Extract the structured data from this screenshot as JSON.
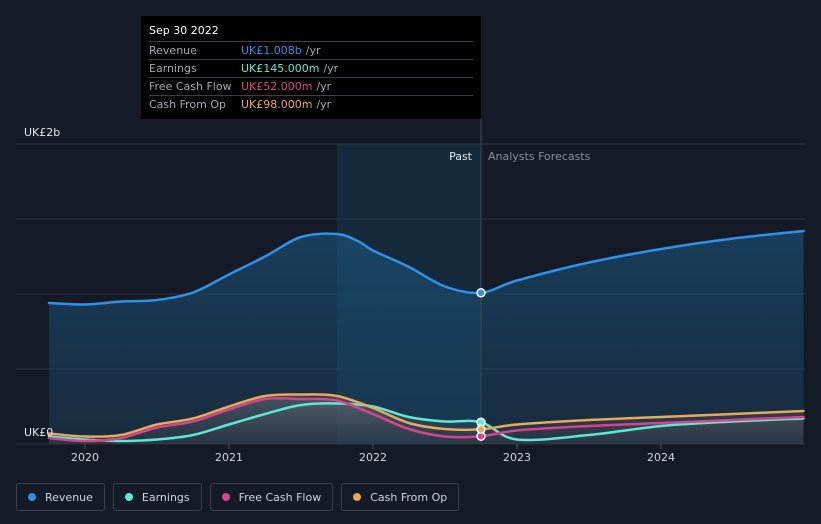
{
  "tooltip": {
    "date": "Sep 30 2022",
    "rows": [
      {
        "label": "Revenue",
        "value": "UK£1.008b",
        "unit": "/yr",
        "color": "#2e93e8"
      },
      {
        "label": "Earnings",
        "value": "UK£145.000m",
        "unit": "/yr",
        "color": "#5ee8d3"
      },
      {
        "label": "Free Cash Flow",
        "value": "UK£52.000m",
        "unit": "/yr",
        "color": "#d6458c"
      },
      {
        "label": "Cash From Op",
        "value": "UK£98.000m",
        "unit": "/yr",
        "color": "#e8a95b"
      }
    ]
  },
  "labels": {
    "past": "Past",
    "forecast": "Analysts Forecasts",
    "y_top": "UK£2b",
    "y_bottom": "UK£0"
  },
  "legend": [
    {
      "label": "Revenue",
      "color": "#2e93e8"
    },
    {
      "label": "Earnings",
      "color": "#5ee8d3"
    },
    {
      "label": "Free Cash Flow",
      "color": "#d6458c"
    },
    {
      "label": "Cash From Op",
      "color": "#e8a95b"
    }
  ],
  "chart_data": {
    "type": "line",
    "x_ticks": [
      "2020",
      "2021",
      "2022",
      "2023",
      "2024"
    ],
    "ylim": [
      0,
      2
    ],
    "y_unit": "UK£ billions",
    "past_end": 2022.75,
    "series": [
      {
        "name": "Revenue",
        "color": "#2e93e8",
        "points": [
          [
            2019.75,
            0.94
          ],
          [
            2020.0,
            0.93
          ],
          [
            2020.25,
            0.95
          ],
          [
            2020.5,
            0.96
          ],
          [
            2020.75,
            1.01
          ],
          [
            2021.0,
            1.13
          ],
          [
            2021.25,
            1.25
          ],
          [
            2021.5,
            1.38
          ],
          [
            2021.75,
            1.4
          ],
          [
            2021.9,
            1.35
          ],
          [
            2022.0,
            1.29
          ],
          [
            2022.25,
            1.18
          ],
          [
            2022.5,
            1.05
          ],
          [
            2022.75,
            1.008
          ],
          [
            2023.0,
            1.09
          ],
          [
            2023.5,
            1.21
          ],
          [
            2024.0,
            1.3
          ],
          [
            2024.5,
            1.37
          ],
          [
            2024.99,
            1.42
          ]
        ]
      },
      {
        "name": "Earnings",
        "color": "#5ee8d3",
        "points": [
          [
            2019.75,
            0.05
          ],
          [
            2020.0,
            0.03
          ],
          [
            2020.25,
            0.02
          ],
          [
            2020.5,
            0.03
          ],
          [
            2020.75,
            0.06
          ],
          [
            2021.0,
            0.13
          ],
          [
            2021.25,
            0.2
          ],
          [
            2021.5,
            0.26
          ],
          [
            2021.75,
            0.27
          ],
          [
            2022.0,
            0.25
          ],
          [
            2022.25,
            0.18
          ],
          [
            2022.5,
            0.15
          ],
          [
            2022.75,
            0.145
          ],
          [
            2023.0,
            0.03
          ],
          [
            2023.5,
            0.06
          ],
          [
            2024.0,
            0.12
          ],
          [
            2024.5,
            0.15
          ],
          [
            2024.99,
            0.17
          ]
        ]
      },
      {
        "name": "Free Cash Flow",
        "color": "#d6458c",
        "points": [
          [
            2019.75,
            0.04
          ],
          [
            2020.0,
            0.02
          ],
          [
            2020.25,
            0.04
          ],
          [
            2020.5,
            0.11
          ],
          [
            2020.75,
            0.15
          ],
          [
            2021.0,
            0.23
          ],
          [
            2021.25,
            0.3
          ],
          [
            2021.5,
            0.3
          ],
          [
            2021.75,
            0.29
          ],
          [
            2022.0,
            0.2
          ],
          [
            2022.25,
            0.1
          ],
          [
            2022.5,
            0.05
          ],
          [
            2022.75,
            0.052
          ],
          [
            2023.0,
            0.09
          ],
          [
            2023.5,
            0.12
          ],
          [
            2024.0,
            0.14
          ],
          [
            2024.5,
            0.16
          ],
          [
            2024.99,
            0.18
          ]
        ]
      },
      {
        "name": "Cash From Op",
        "color": "#e8a95b",
        "points": [
          [
            2019.75,
            0.07
          ],
          [
            2020.0,
            0.05
          ],
          [
            2020.25,
            0.06
          ],
          [
            2020.5,
            0.13
          ],
          [
            2020.75,
            0.17
          ],
          [
            2021.0,
            0.25
          ],
          [
            2021.25,
            0.32
          ],
          [
            2021.5,
            0.33
          ],
          [
            2021.75,
            0.32
          ],
          [
            2022.0,
            0.24
          ],
          [
            2022.25,
            0.14
          ],
          [
            2022.5,
            0.1
          ],
          [
            2022.75,
            0.098
          ],
          [
            2023.0,
            0.13
          ],
          [
            2023.5,
            0.16
          ],
          [
            2024.0,
            0.18
          ],
          [
            2024.5,
            0.2
          ],
          [
            2024.99,
            0.22
          ]
        ]
      }
    ]
  }
}
